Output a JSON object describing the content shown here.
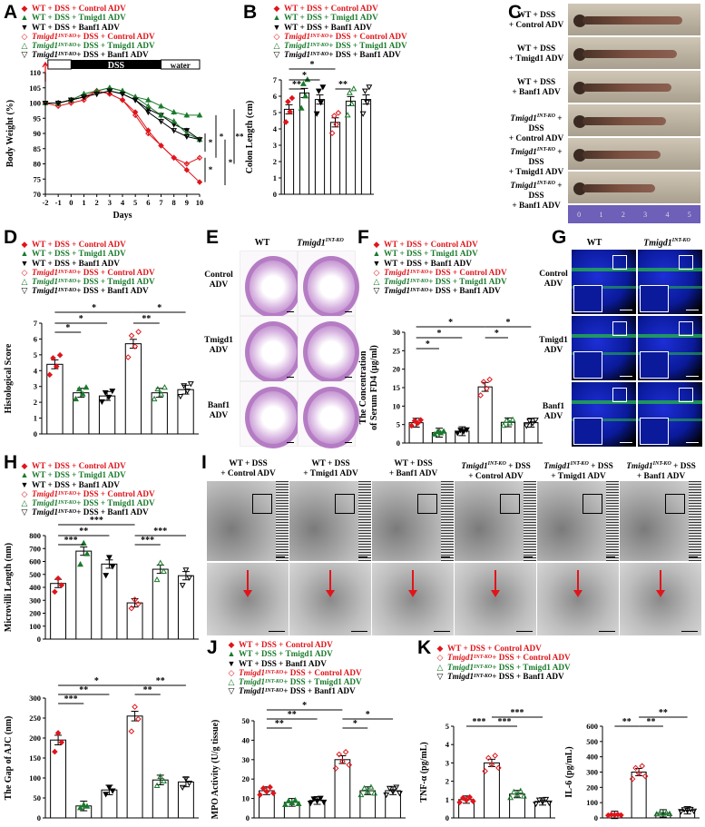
{
  "panels": {
    "A": "A",
    "B": "B",
    "C": "C",
    "D": "D",
    "E": "E",
    "F": "F",
    "G": "G",
    "H": "H",
    "I": "I",
    "J": "J",
    "K": "K"
  },
  "legend": {
    "g1": "WT + DSS + Control ADV",
    "g2": "WT + DSS + Tmigd1 ADV",
    "g3": "WT + DSS + Banf1 ADV",
    "ko": "Tmigd1",
    "sup": "INT-KO",
    "s4": " + DSS + Control ADV",
    "s5": " + DSS + Tmigd1 ADV",
    "s6": " + DSS + Banf1 ADV"
  },
  "colors": {
    "red": "#e0151b",
    "green": "#1a7a2c",
    "black": "#000000"
  },
  "panelA": {
    "ylabel": "Body Weight (%)",
    "xlabel": "Days",
    "dss": "DSS",
    "water": "water",
    "yticks": [
      "70",
      "75",
      "80",
      "85",
      "90",
      "95",
      "100",
      "105",
      "110"
    ],
    "xticks": [
      "-2",
      "-1",
      "0",
      "1",
      "2",
      "3",
      "4",
      "5",
      "6",
      "7",
      "8",
      "9",
      "10"
    ],
    "sig": [
      "*",
      "*",
      "*",
      "*",
      "**"
    ],
    "chart_data": {
      "type": "line",
      "x": [
        -2,
        -1,
        0,
        1,
        2,
        3,
        4,
        5,
        6,
        7,
        8,
        9,
        10
      ],
      "ylim": [
        70,
        110
      ],
      "series": [
        {
          "values": [
            100,
            100,
            101,
            102,
            104,
            103,
            101,
            97,
            91,
            86,
            82,
            78,
            74
          ]
        },
        {
          "values": [
            100,
            100,
            101,
            103,
            104,
            105,
            104,
            102,
            101,
            99,
            97,
            96,
            96
          ]
        },
        {
          "values": [
            100,
            100,
            101,
            102,
            103,
            104,
            103,
            101,
            98,
            96,
            93,
            91,
            88
          ]
        },
        {
          "values": [
            100,
            99,
            100,
            101,
            104,
            103,
            101,
            96,
            90,
            86,
            82,
            80,
            82
          ]
        },
        {
          "values": [
            100,
            100,
            101,
            103,
            104,
            105,
            104,
            102,
            99,
            96,
            94,
            90,
            88
          ]
        },
        {
          "values": [
            100,
            100,
            101,
            102,
            103,
            104,
            103,
            101,
            97,
            94,
            91,
            89,
            88
          ]
        }
      ]
    }
  },
  "panelB": {
    "ylabel": "Colon Length (cm)",
    "yticks": [
      "0",
      "1",
      "2",
      "3",
      "4",
      "5",
      "6",
      "7"
    ],
    "sig": [
      "*",
      "*",
      "**",
      "**"
    ],
    "chart_data": {
      "type": "bar",
      "values": [
        5.2,
        6.2,
        5.8,
        4.4,
        5.7,
        5.8
      ],
      "ylim": [
        0,
        7
      ]
    }
  },
  "panelC": {
    "labels": [
      {
        "a": "WT + DSS",
        "b": "+ Control ADV"
      },
      {
        "a": "WT + DSS",
        "b": "+ Tmigd1 ADV"
      },
      {
        "a": "WT + DSS",
        "b": "+ Banf1 ADV"
      },
      {
        "a": " + DSS",
        "b": "+ Control ADV"
      },
      {
        "a": " + DSS",
        "b": "+ Tmigd1 ADV"
      },
      {
        "a": " + DSS",
        "b": "+ Banf1 ADV"
      }
    ],
    "ruler": [
      "0",
      "1",
      "2",
      "3",
      "4",
      "5"
    ]
  },
  "panelD": {
    "ylabel": "Histological Score",
    "yticks": [
      "0",
      "1",
      "2",
      "3",
      "4",
      "5",
      "6",
      "7"
    ],
    "sig": [
      "*",
      "*",
      "*",
      "**",
      "*"
    ],
    "chart_data": {
      "type": "bar",
      "values": [
        4.4,
        2.6,
        2.4,
        5.7,
        2.6,
        2.8
      ],
      "ylim": [
        0,
        7
      ]
    }
  },
  "panelE": {
    "col1": "WT",
    "rows": [
      {
        "a": "Control",
        "b": "ADV"
      },
      {
        "a": "Tmigd1",
        "b": "ADV"
      },
      {
        "a": "Banf1",
        "b": "ADV"
      }
    ]
  },
  "panelF": {
    "ylabel1": "The Concentration",
    "ylabel2": "of Serum FD4 (µg/ml)",
    "yticks": [
      "0",
      "5",
      "10",
      "15",
      "20",
      "25",
      "30"
    ],
    "sig": [
      "*",
      "*",
      "*",
      "*",
      "*"
    ],
    "chart_data": {
      "type": "bar",
      "values": [
        5.5,
        2.8,
        3.2,
        15.2,
        5.6,
        5.5
      ],
      "ylim": [
        0,
        30
      ]
    }
  },
  "panelG": {
    "col1": "WT",
    "rows": [
      {
        "a": "Control",
        "b": "ADV"
      },
      {
        "a": "Tmigd1",
        "b": "ADV"
      },
      {
        "a": "Banf1",
        "b": "ADV"
      }
    ]
  },
  "panelH1": {
    "ylabel": "Microvilli Length (nm)",
    "yticks": [
      "0",
      "100",
      "200",
      "300",
      "400",
      "500",
      "600",
      "700",
      "800"
    ],
    "sig": [
      "***",
      "**",
      "***",
      "***",
      "***"
    ],
    "chart_data": {
      "type": "bar",
      "values": [
        430,
        680,
        580,
        280,
        540,
        490
      ],
      "ylim": [
        0,
        800
      ]
    }
  },
  "panelH2": {
    "ylabel": "The Gap of AJC (nm)",
    "yticks": [
      "0",
      "50",
      "100",
      "150",
      "200",
      "250",
      "300"
    ],
    "sig": [
      "*",
      "**",
      "***",
      "**",
      "**"
    ],
    "chart_data": {
      "type": "bar",
      "values": [
        195,
        30,
        70,
        255,
        95,
        90
      ],
      "ylim": [
        0,
        300
      ]
    }
  },
  "panelI": {
    "cols": [
      {
        "a": "WT + DSS",
        "b": "+ Control ADV"
      },
      {
        "a": "WT + DSS",
        "b": "+ Tmigd1 ADV"
      },
      {
        "a": "WT + DSS",
        "b": "+ Banf1 ADV"
      },
      {
        "a": " + DSS",
        "b": "+ Control ADV"
      },
      {
        "a": " + DSS",
        "b": "+ Tmigd1 ADV"
      },
      {
        "a": " + DSS",
        "b": "+ Banf1 ADV"
      }
    ]
  },
  "panelJ": {
    "ylabel": "MPO Activity (U/g tissue)",
    "yticks": [
      "0",
      "10",
      "20",
      "30",
      "40",
      "50"
    ],
    "sig": [
      "*",
      "**",
      "**",
      "*",
      "*"
    ],
    "chart_data": {
      "type": "bar",
      "values": [
        14,
        8,
        9,
        30,
        14,
        14
      ],
      "ylim": [
        0,
        50
      ]
    }
  },
  "panelK1": {
    "ylabel": "TNF-α (pg/mL)",
    "yticks": [
      "0",
      "1",
      "2",
      "3",
      "4",
      "5"
    ],
    "sig": [
      "***",
      "***",
      "***"
    ],
    "chart_data": {
      "type": "bar",
      "values": [
        1.0,
        3.0,
        1.3,
        0.9
      ],
      "ylim": [
        0,
        5
      ]
    }
  },
  "panelK2": {
    "ylabel": "IL-6 (pg/mL)",
    "yticks": [
      "0",
      "100",
      "200",
      "300",
      "400",
      "500",
      "600"
    ],
    "sig": [
      "**",
      "**",
      "**"
    ],
    "chart_data": {
      "type": "bar",
      "values": [
        20,
        300,
        30,
        50
      ],
      "ylim": [
        0,
        600
      ]
    }
  }
}
